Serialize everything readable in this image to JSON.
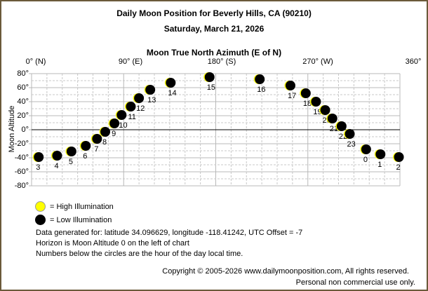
{
  "header": {
    "title": "Daily Moon Position for Beverly Hills, CA (90210)",
    "date": "Saturday, March 21, 2026"
  },
  "chart_data": {
    "type": "scatter",
    "title": "Daily Moon Position for Beverly Hills, CA (90210)",
    "subtitle": "Saturday, March 21, 2026",
    "xlabel": "Moon True North Azimuth (E of N)",
    "ylabel": "Moon Altitude",
    "xlim": [
      0,
      360
    ],
    "ylim": [
      -80,
      80
    ],
    "x_ticks": [
      "0° (N)",
      "90° (E)",
      "180° (S)",
      "270° (W)",
      "360°"
    ],
    "y_ticks": [
      "80°",
      "60°",
      "40°",
      "20°",
      "0°",
      "-20°",
      "-40°",
      "-60°",
      "-80°"
    ],
    "grid": true,
    "horizon_line": 0,
    "points": [
      {
        "hour": "3",
        "az": 7,
        "alt": -39
      },
      {
        "hour": "4",
        "az": 25,
        "alt": -37
      },
      {
        "hour": "5",
        "az": 39,
        "alt": -31
      },
      {
        "hour": "6",
        "az": 53,
        "alt": -23
      },
      {
        "hour": "7",
        "az": 64,
        "alt": -13
      },
      {
        "hour": "8",
        "az": 72,
        "alt": -3
      },
      {
        "hour": "9",
        "az": 81,
        "alt": 9
      },
      {
        "hour": "10",
        "az": 88,
        "alt": 21
      },
      {
        "hour": "11",
        "az": 97,
        "alt": 33
      },
      {
        "hour": "12",
        "az": 105,
        "alt": 45
      },
      {
        "hour": "13",
        "az": 116,
        "alt": 57
      },
      {
        "hour": "14",
        "az": 136,
        "alt": 67
      },
      {
        "hour": "15",
        "az": 174,
        "alt": 75
      },
      {
        "hour": "16",
        "az": 223,
        "alt": 72
      },
      {
        "hour": "17",
        "az": 253,
        "alt": 63
      },
      {
        "hour": "18",
        "az": 268,
        "alt": 52
      },
      {
        "hour": "19",
        "az": 278,
        "alt": 40
      },
      {
        "hour": "20",
        "az": 287,
        "alt": 28
      },
      {
        "hour": "21",
        "az": 294,
        "alt": 16
      },
      {
        "hour": "22",
        "az": 303,
        "alt": 5
      },
      {
        "hour": "23",
        "az": 311,
        "alt": -6
      },
      {
        "hour": "0",
        "az": 327,
        "alt": -28
      },
      {
        "hour": "1",
        "az": 341,
        "alt": -35
      },
      {
        "hour": "2",
        "az": 359,
        "alt": -39
      }
    ],
    "legend": [
      {
        "label": "= High Illumination",
        "color": "#ffff00"
      },
      {
        "label": "= Low Illumination",
        "color": "#000000"
      }
    ]
  },
  "info": {
    "line1": "Data generated for: latitude 34.096629, longitude -118.41242, UTC Offset = -7",
    "line2": "Horizon is Moon Altitude 0 on the left of chart",
    "line3": "Numbers below the circles are the hour of the day local time."
  },
  "footer": {
    "copyright": "Copyright © 2005-2026 www.dailymoonposition.com, All rights reserved.",
    "usage": "Personal non commercial use only."
  },
  "colors": {
    "border": "#6b5a3a",
    "grid": "#c0c0c0",
    "high": "#ffff00",
    "low": "#000000"
  }
}
